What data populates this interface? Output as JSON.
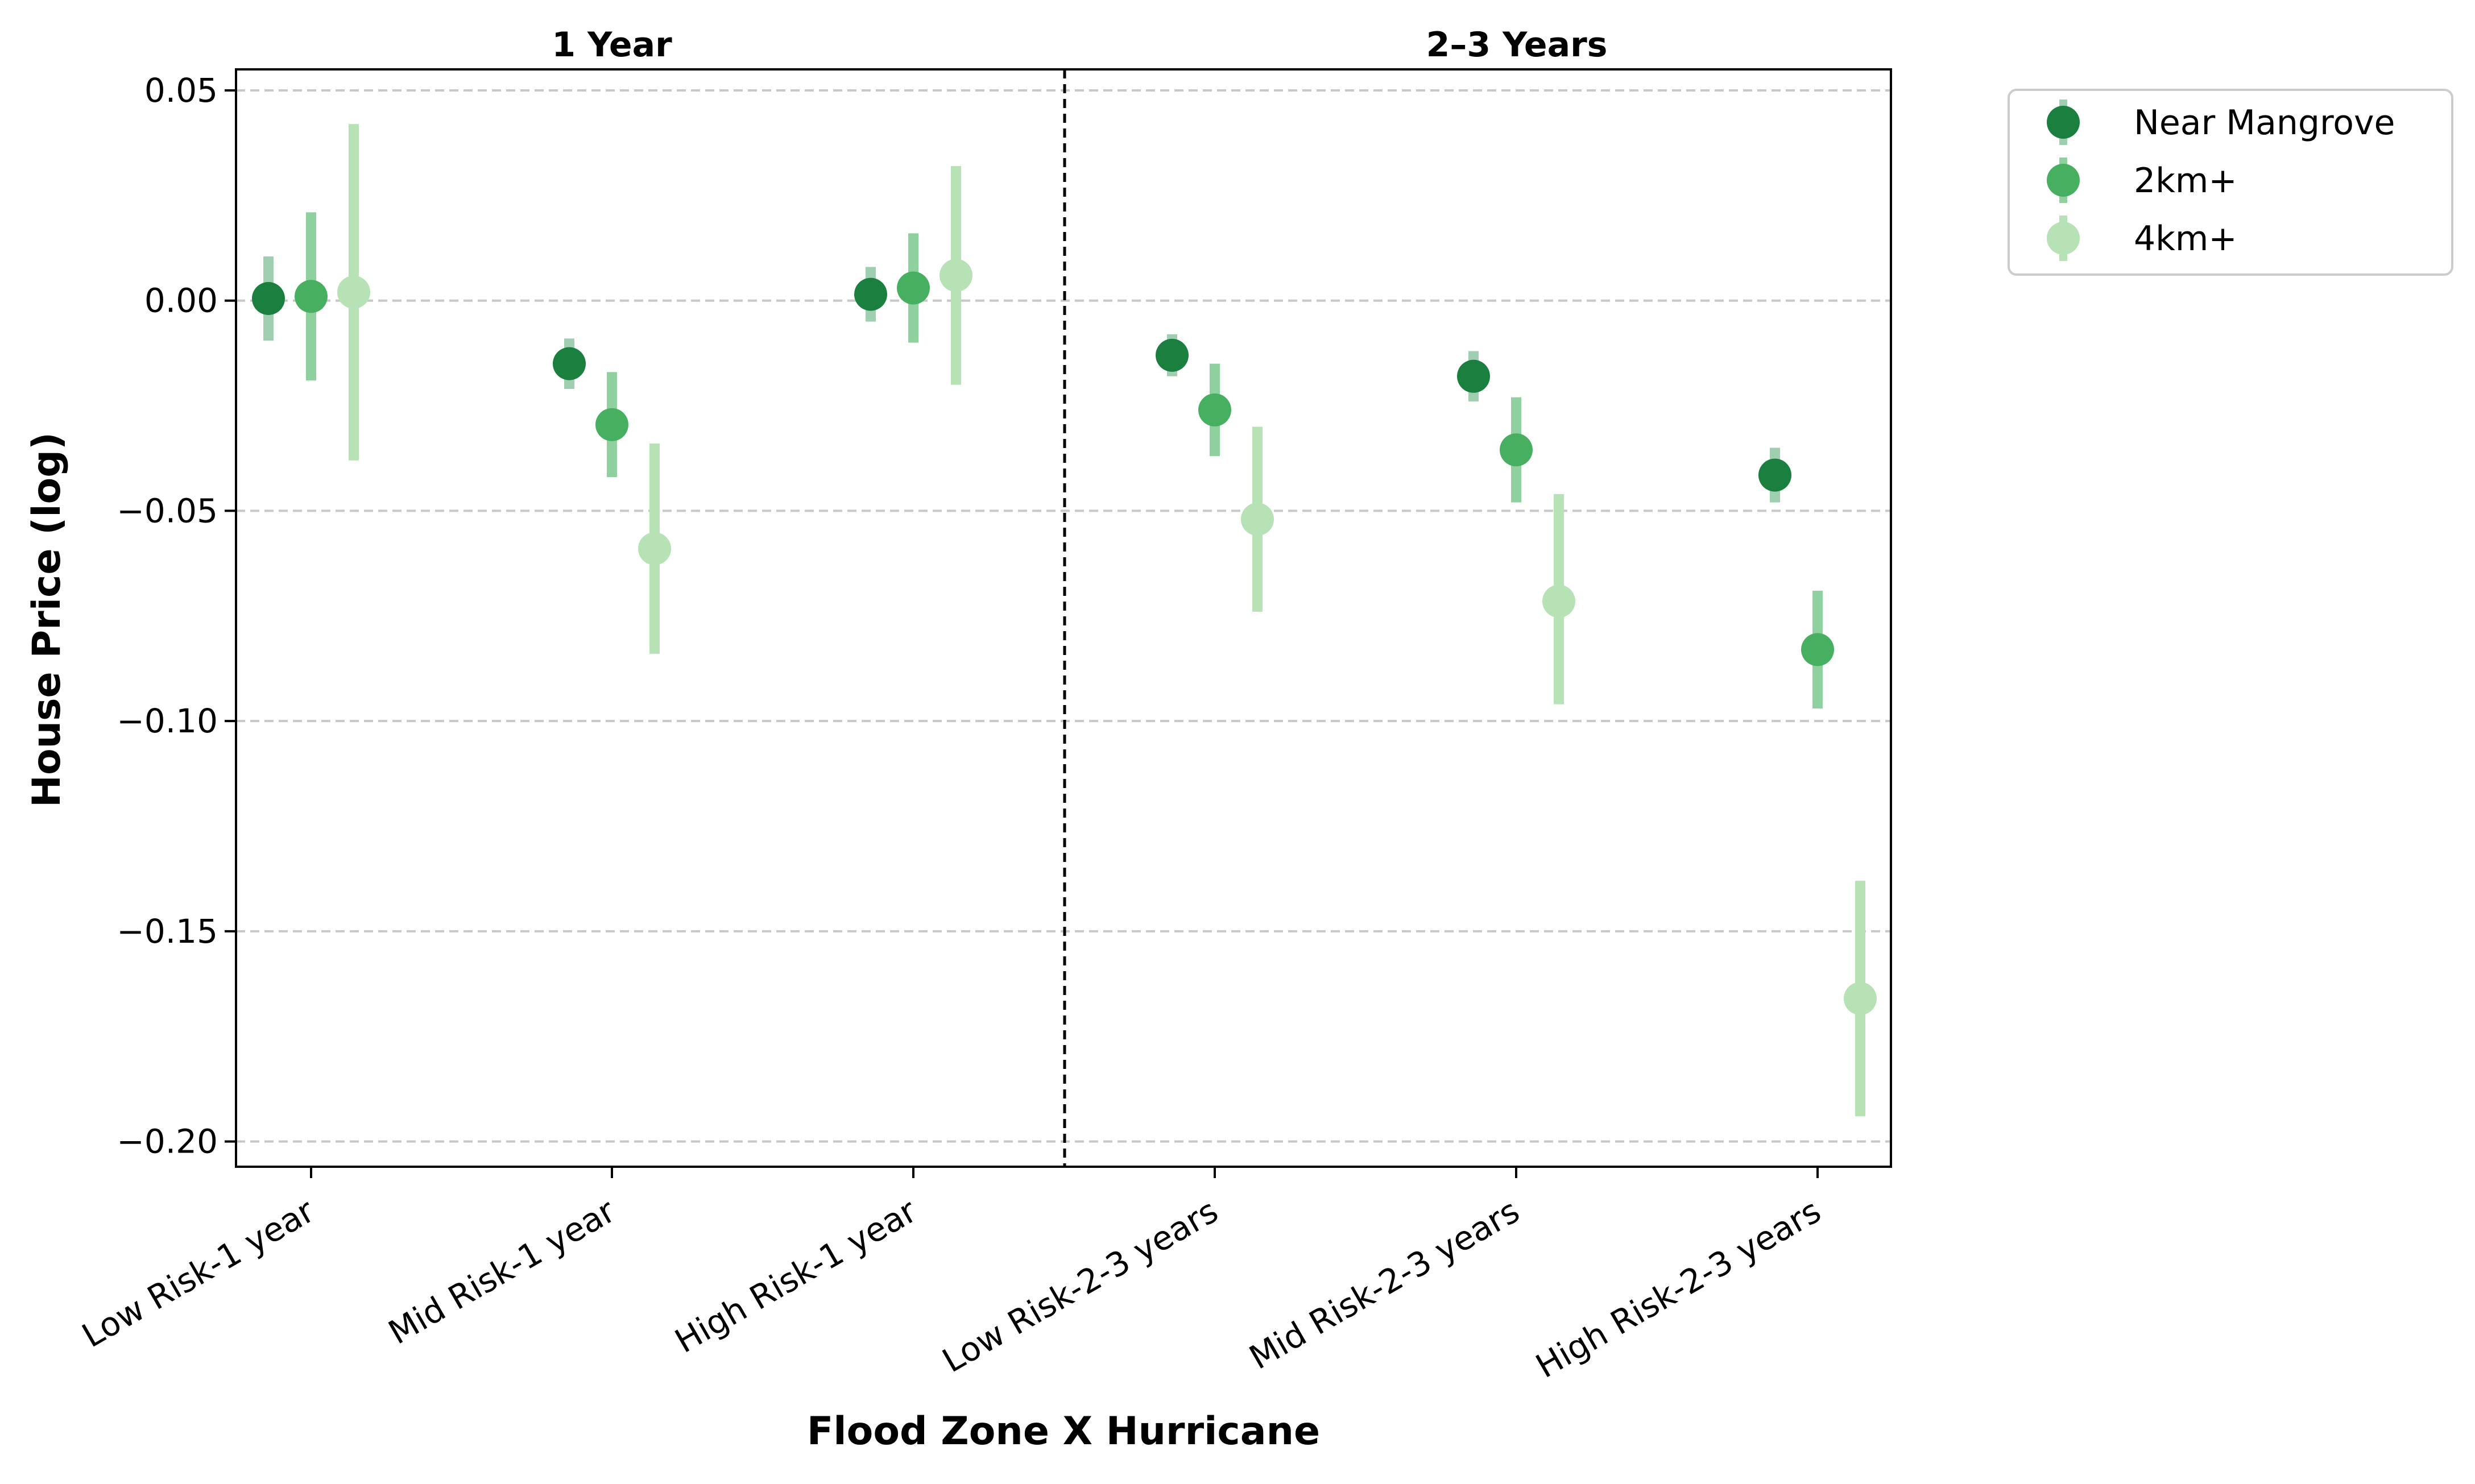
{
  "chart_data": {
    "type": "scatter",
    "subtype": "point-range (coefficient plot with error bars)",
    "title": "",
    "xlabel": "Flood Zone X Hurricane",
    "ylabel": "House Price (log)",
    "ylim": [
      -0.206,
      0.055
    ],
    "yticks": [
      0.05,
      0.0,
      -0.05,
      -0.1,
      -0.15,
      -0.2
    ],
    "ytick_labels": [
      "0.05",
      "0.00",
      "−0.05",
      "−0.10",
      "−0.15",
      "−0.20"
    ],
    "grid": "horizontal dashed",
    "panels": [
      {
        "title": "1 Year",
        "categories": [
          "Low Risk-1 year",
          "Mid Risk-1 year",
          "High Risk-1 year"
        ]
      },
      {
        "title": "2–3 Years",
        "categories": [
          "Low Risk-2-3 years",
          "Mid Risk-2-3 years",
          "High Risk-2-3 years"
        ]
      }
    ],
    "categories": [
      "Low Risk-1 year",
      "Mid Risk-1 year",
      "High Risk-1 year",
      "Low Risk-2-3 years",
      "Mid Risk-2-3 years",
      "High Risk-2-3 years"
    ],
    "legend_position": "outside top-right",
    "series": [
      {
        "name": "Near Mangrove",
        "color": "#1a7f3f",
        "errcolor": "#9fcfb0",
        "values": [
          0.0005,
          -0.015,
          0.0015,
          -0.013,
          -0.018,
          -0.0415
        ],
        "lower": [
          -0.0095,
          -0.021,
          -0.005,
          -0.018,
          -0.024,
          -0.048
        ],
        "upper": [
          0.0105,
          -0.009,
          0.008,
          -0.008,
          -0.012,
          -0.035
        ]
      },
      {
        "name": "2km+",
        "color": "#47b060",
        "errcolor": "#8fd19e",
        "values": [
          0.001,
          -0.0295,
          0.003,
          -0.026,
          -0.0355,
          -0.083
        ],
        "lower": [
          -0.019,
          -0.042,
          -0.01,
          -0.037,
          -0.048,
          -0.097
        ],
        "upper": [
          0.021,
          -0.017,
          0.016,
          -0.015,
          -0.023,
          -0.069
        ]
      },
      {
        "name": "4km+",
        "color": "#b6e2b6",
        "errcolor": "#b6e2b6",
        "values": [
          0.002,
          -0.059,
          0.006,
          -0.052,
          -0.0715,
          -0.166
        ],
        "lower": [
          -0.038,
          -0.084,
          -0.02,
          -0.074,
          -0.096,
          -0.194
        ],
        "upper": [
          0.042,
          -0.034,
          0.032,
          -0.03,
          -0.046,
          -0.138
        ]
      }
    ]
  }
}
